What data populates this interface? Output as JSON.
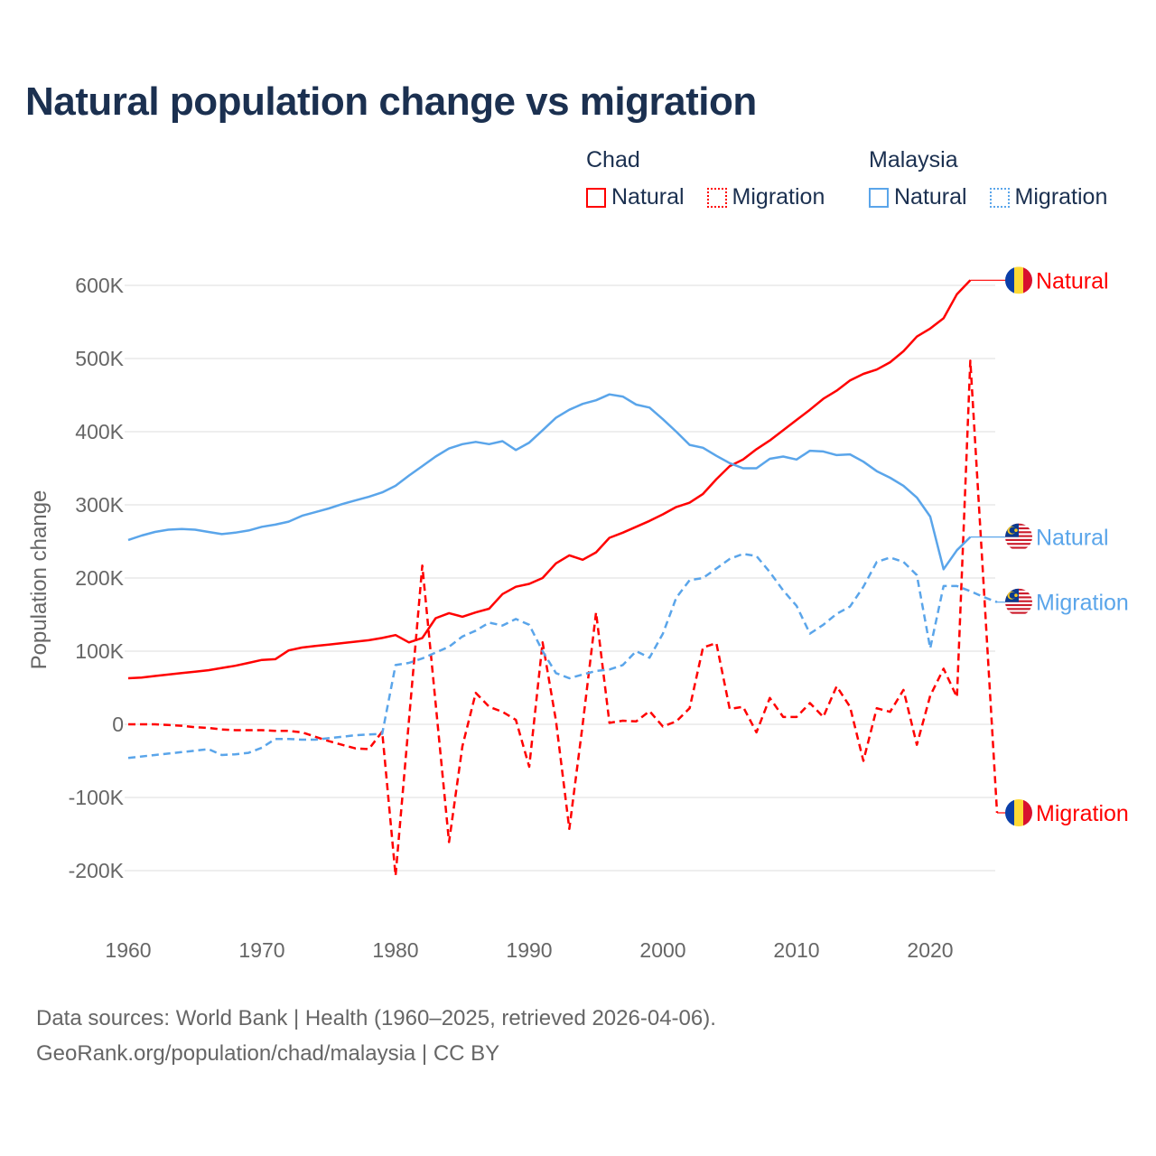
{
  "title": "Natural population change vs migration",
  "legend": [
    {
      "group": "Chad",
      "items": [
        {
          "label": "Natural",
          "style": "solid",
          "color": "#ff0000"
        },
        {
          "label": "Migration",
          "style": "dotted",
          "color": "#ff0000"
        }
      ]
    },
    {
      "group": "Malaysia",
      "items": [
        {
          "label": "Natural",
          "style": "solid",
          "color": "#5aa5ea"
        },
        {
          "label": "Migration",
          "style": "dotted",
          "color": "#5aa5ea"
        }
      ]
    }
  ],
  "footer": {
    "line1": "Data sources: World Bank | Health (1960–2025, retrieved 2026-04-06).",
    "line2": "GeoRank.org/population/chad/malaysia | CC BY"
  },
  "chart_data": {
    "type": "line",
    "title": "Natural population change vs migration",
    "xlabel": "",
    "ylabel": "Population change",
    "xlim": [
      1960,
      2025
    ],
    "ylim": [
      -200000,
      600000
    ],
    "grid": true,
    "legend_placement": "top-right",
    "x_ticks": [
      "1960",
      "1970",
      "1980",
      "1990",
      "2000",
      "2010",
      "2020"
    ],
    "y_ticks": [
      {
        "v": 600000,
        "label": "600K"
      },
      {
        "v": 500000,
        "label": "500K"
      },
      {
        "v": 400000,
        "label": "400K"
      },
      {
        "v": 300000,
        "label": "300K"
      },
      {
        "v": 200000,
        "label": "200K"
      },
      {
        "v": 100000,
        "label": "100K"
      },
      {
        "v": 0,
        "label": "0"
      },
      {
        "v": -100000,
        "label": "-100K"
      },
      {
        "v": -200000,
        "label": "-200K"
      }
    ],
    "x_start": 1960,
    "units": "thousands",
    "series": [
      {
        "name": "Chad Natural",
        "end_label": "Natural",
        "country": "chad",
        "color": "#ff0000",
        "dashed": false,
        "values": [
          63,
          64,
          66,
          68,
          70,
          72,
          74,
          77,
          80,
          84,
          88,
          89,
          101,
          105,
          107,
          109,
          111,
          113,
          115,
          118,
          122,
          112,
          118,
          145,
          152,
          147,
          153,
          158,
          178,
          188,
          192,
          200,
          220,
          231,
          225,
          235,
          255,
          262,
          270,
          278,
          287,
          297,
          303,
          315,
          335,
          353,
          362,
          376,
          388,
          402,
          416,
          430,
          445,
          456,
          470,
          479,
          485,
          495,
          510,
          530,
          541,
          555,
          588,
          607
        ]
      },
      {
        "name": "Chad Migration",
        "end_label": "Migration",
        "country": "chad",
        "color": "#ff0000",
        "dashed": true,
        "values": [
          0,
          0,
          0,
          -1,
          -2,
          -4,
          -5,
          -7,
          -8,
          -8,
          -8,
          -9,
          -9,
          -11,
          -17,
          -23,
          -28,
          -33,
          -34,
          -10,
          -207,
          5,
          217,
          28,
          -161,
          -30,
          43,
          24,
          17,
          6,
          -58,
          112,
          5,
          -143,
          0,
          153,
          2,
          5,
          4,
          18,
          -3,
          4,
          22,
          105,
          111,
          21,
          24,
          -11,
          36,
          10,
          10,
          29,
          10,
          52,
          24,
          -50,
          22,
          17,
          47,
          -28,
          39,
          76,
          37,
          497,
          190,
          -121
        ]
      },
      {
        "name": "Malaysia Natural",
        "end_label": "Natural",
        "country": "malaysia",
        "color": "#5aa5ea",
        "dashed": false,
        "values": [
          252,
          258,
          263,
          266,
          267,
          266,
          263,
          260,
          262,
          265,
          270,
          273,
          277,
          285,
          290,
          295,
          301,
          306,
          311,
          317,
          326,
          340,
          353,
          366,
          377,
          383,
          386,
          383,
          387,
          375,
          385,
          402,
          419,
          430,
          438,
          443,
          451,
          448,
          437,
          433,
          417,
          400,
          382,
          378,
          367,
          357,
          350,
          350,
          363,
          366,
          362,
          374,
          373,
          368,
          369,
          359,
          346,
          337,
          326,
          310,
          284,
          212,
          238,
          256
        ]
      },
      {
        "name": "Malaysia Migration",
        "end_label": "Migration",
        "country": "malaysia",
        "color": "#5aa5ea",
        "dashed": true,
        "values": [
          -46,
          -44,
          -42,
          -40,
          -38,
          -36,
          -34,
          -42,
          -41,
          -39,
          -32,
          -20,
          -20,
          -21,
          -21,
          -19,
          -17,
          -15,
          -14,
          -13,
          81,
          84,
          90,
          98,
          106,
          120,
          128,
          139,
          135,
          144,
          136,
          100,
          70,
          63,
          68,
          73,
          75,
          81,
          100,
          91,
          124,
          173,
          197,
          200,
          213,
          226,
          233,
          230,
          208,
          183,
          162,
          124,
          136,
          151,
          161,
          188,
          222,
          228,
          222,
          204,
          104,
          189,
          189,
          182,
          174,
          167
        ]
      }
    ]
  }
}
